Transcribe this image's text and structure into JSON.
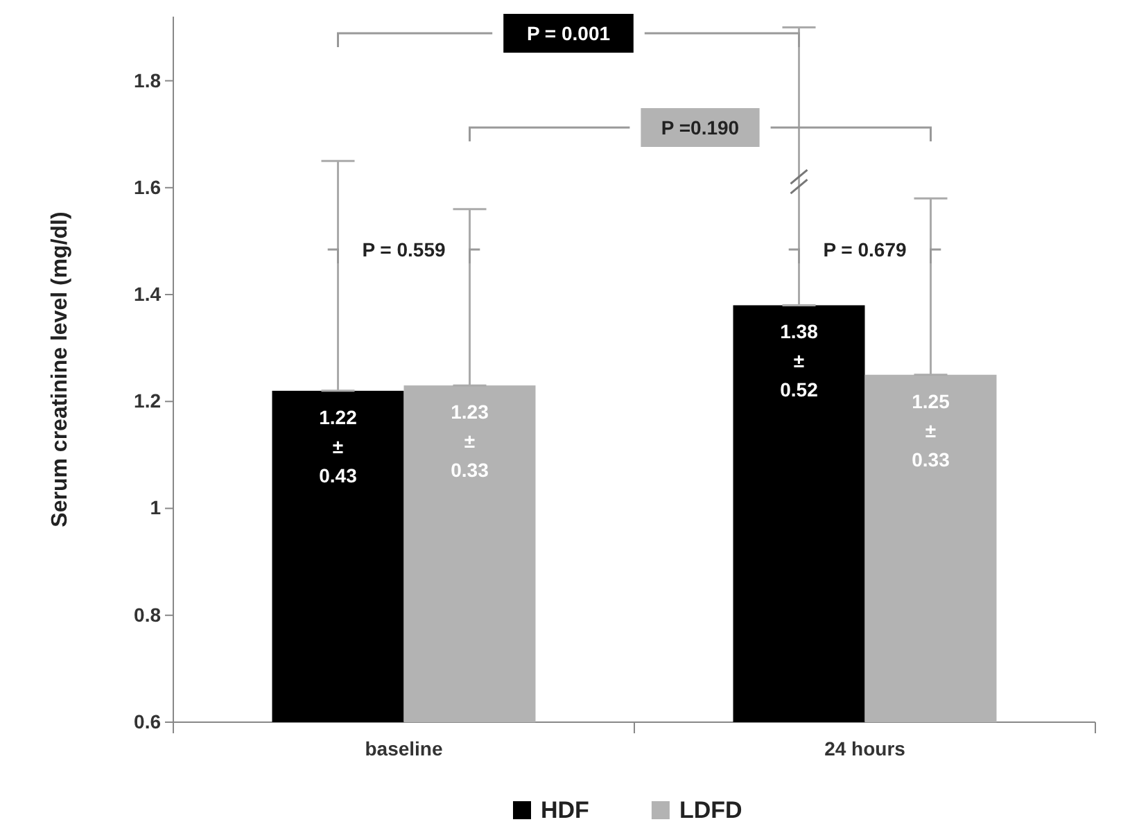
{
  "chart_data": {
    "type": "bar",
    "ylabel": "Serum creatinine level (mg/dl)",
    "categories": [
      "baseline",
      "24 hours"
    ],
    "series": [
      {
        "name": "HDF",
        "color": "#000000",
        "values": [
          1.22,
          1.38
        ],
        "errors": [
          [
            1.22,
            1.65
          ],
          [
            1.38,
            1.9
          ]
        ],
        "value_labels": [
          "1.22\n±\n0.43",
          "1.38\n±\n0.52"
        ]
      },
      {
        "name": "LDFD",
        "color": "#b3b3b3",
        "values": [
          1.23,
          1.25
        ],
        "errors": [
          [
            1.23,
            1.56
          ],
          [
            1.25,
            1.58
          ]
        ],
        "value_labels": [
          "1.23\n±\n0.33",
          "1.25\n±\n0.33"
        ]
      }
    ],
    "ylim": [
      0.6,
      1.92
    ],
    "yticks": [
      0.6,
      0.8,
      1,
      1.2,
      1.4,
      1.6,
      1.8
    ],
    "grid": false,
    "legend": "bottom",
    "annotations": [
      "P = 0.559",
      "P = 0.679",
      "P = 0.001",
      "P =0.190"
    ]
  }
}
